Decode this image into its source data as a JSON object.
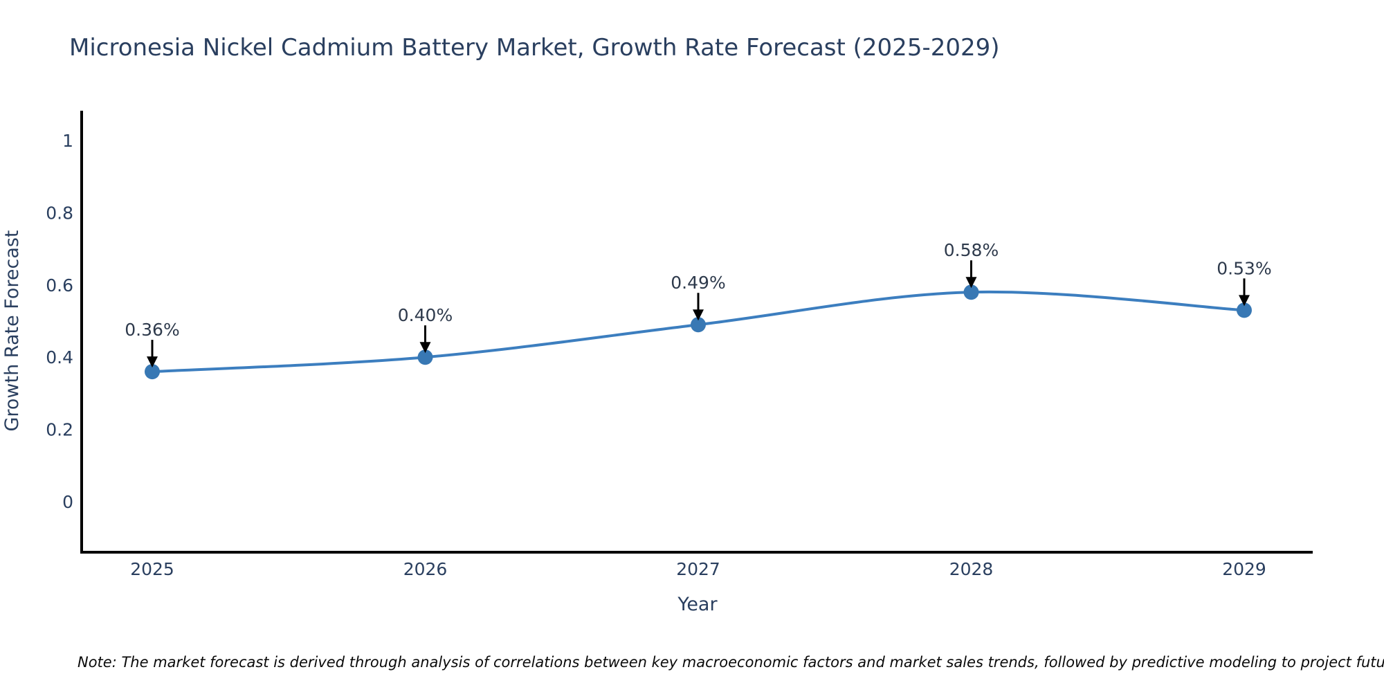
{
  "chart_data": {
    "type": "line",
    "title": "Micronesia Nickel Cadmium Battery Market, Growth Rate Forecast (2025-2029)",
    "xlabel": "Year",
    "ylabel": "Growth Rate Forecast",
    "categories": [
      "2025",
      "2026",
      "2027",
      "2028",
      "2029"
    ],
    "series": [
      {
        "name": "Growth Rate Forecast",
        "values": [
          0.36,
          0.4,
          0.49,
          0.58,
          0.53
        ]
      }
    ],
    "point_labels": [
      "0.36%",
      "0.40%",
      "0.49%",
      "0.58%",
      "0.53%"
    ],
    "y_ticks": [
      0,
      0.2,
      0.4,
      0.6,
      0.8,
      1
    ],
    "y_tick_labels": [
      "0",
      "0.2",
      "0.4",
      "0.6",
      "0.8",
      "1"
    ],
    "ylim": [
      -0.145,
      1.08
    ],
    "grid": false,
    "legend": false,
    "line_shape": "spline",
    "line_color": "#3c7ebf",
    "marker_color": "#3878b4",
    "axis_color": "#000000",
    "font_color": "#2a3f5f",
    "annotation_arrow_color": "#000000",
    "note": "Note: The market forecast is derived through analysis of correlations between key macroeconomic factors and market sales trends, followed by predictive modeling to project future sales"
  }
}
